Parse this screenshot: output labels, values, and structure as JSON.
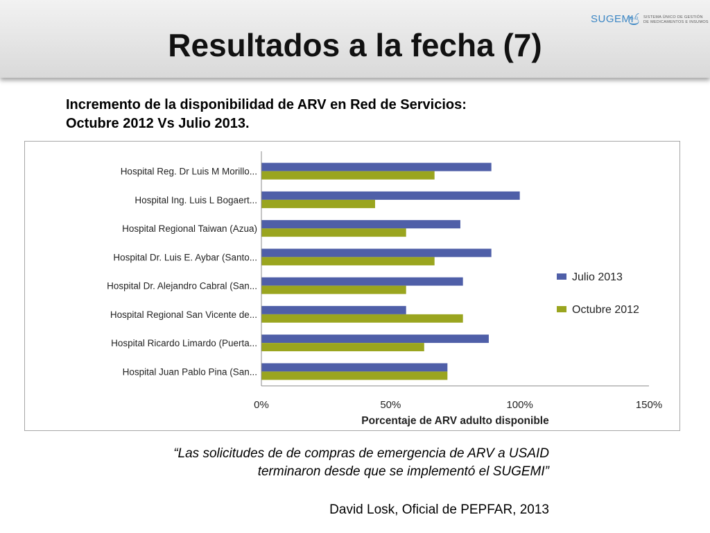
{
  "slide": {
    "title": "Resultados a la fecha (7)",
    "subtitle_line1": "Incremento de la disponibilidad de ARV en  Red de Servicios:",
    "subtitle_line2": "Octubre 2012 Vs Julio 2013.",
    "quote_line1": "“Las solicitudes de de compras de emergencia de ARV a USAID",
    "quote_line2": "terminaron desde que se implementó el SUGEMI”",
    "attribution": "David Losk, Oficial de PEPFAR, 2013"
  },
  "logo": {
    "name": "SUGEMI",
    "sub1": "SISTEMA ÚNICO DE GESTIÓN",
    "sub2": "DE MEDICAMENTOS E INSUMOS",
    "color": "#3b86c4"
  },
  "chart_data": {
    "type": "bar",
    "orientation": "horizontal",
    "categories": [
      "Hospital Reg. Dr Luis M Morillo...",
      "Hospital Ing. Luis L Bogaert...",
      "Hospital Regional Taiwan (Azua)",
      "Hospital Dr. Luis E. Aybar (Santo...",
      "Hospital Dr. Alejandro Cabral (San...",
      "Hospital Regional San Vicente de...",
      "Hospital Ricardo Limardo (Puerta...",
      "Hospital Juan Pablo Pina (San..."
    ],
    "series": [
      {
        "name": "Julio 2013",
        "color": "#4f5fa8",
        "values": [
          89,
          100,
          77,
          89,
          78,
          56,
          88,
          72
        ]
      },
      {
        "name": "Octubre 2012",
        "color": "#9aa51f",
        "values": [
          67,
          44,
          56,
          67,
          56,
          78,
          63,
          72
        ]
      }
    ],
    "xlim": [
      0,
      150
    ],
    "xticks": [
      "0%",
      "50%",
      "100%",
      "150%"
    ],
    "xtick_values": [
      0,
      50,
      100,
      150
    ],
    "xlabel": "Porcentaje de ARV adulto disponible",
    "legend_position": "right",
    "grid": false
  }
}
